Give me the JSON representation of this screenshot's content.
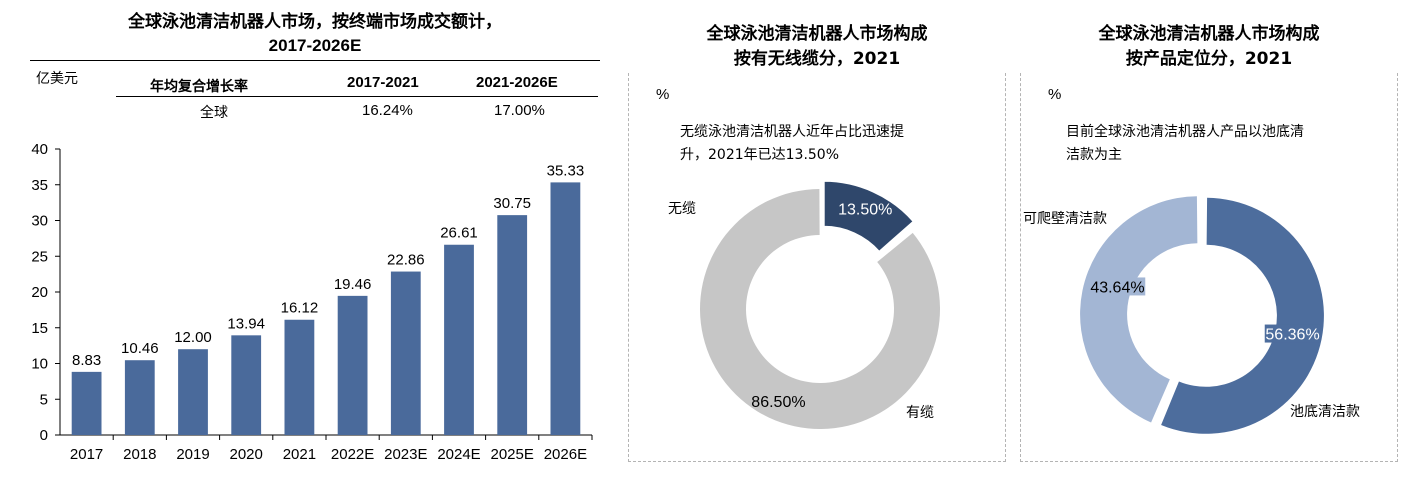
{
  "left_chart": {
    "title_line1": "全球泳池清洁机器人市场，按终端市场成交额计，",
    "title_line2": "2017-2026E",
    "unit": "亿美元",
    "cagr_table": {
      "header_label": "年均复合增长率",
      "col1": "2017-2021",
      "col2": "2021-2026E",
      "row_label": "全球",
      "row_val1": "16.24%",
      "row_val2": "17.00%"
    }
  },
  "middle_chart": {
    "title_line1": "全球泳池清洁机器人市场构成",
    "title_line2": "按有无线缆分，2021",
    "unit": "%",
    "note_line1": "无缆泳池清洁机器人近年占比迅速提",
    "note_line2": "升，2021年已达13.50%"
  },
  "right_chart": {
    "title_line1": "全球泳池清洁机器人市场构成",
    "title_line2": "按产品定位分，2021",
    "unit": "%",
    "note_line1": "目前全球泳池清洁机器人产品以池底清",
    "note_line2": "洁款为主"
  },
  "colors": {
    "bar": "#4a6a9b",
    "cordless": "#2f476b",
    "corded": "#c6c6c6",
    "floor": "#4d6d9d",
    "wall": "#a3b6d4"
  },
  "chart_data": [
    {
      "type": "bar",
      "categories": [
        "2017",
        "2018",
        "2019",
        "2020",
        "2021",
        "2022E",
        "2023E",
        "2024E",
        "2025E",
        "2026E"
      ],
      "values": [
        8.83,
        10.46,
        12.0,
        13.94,
        16.12,
        19.46,
        22.86,
        26.61,
        30.75,
        35.33
      ],
      "value_labels": [
        "8.83",
        "10.46",
        "12.00",
        "13.94",
        "16.12",
        "19.46",
        "22.86",
        "26.61",
        "30.75",
        "35.33"
      ],
      "yticks": [
        "0",
        "5",
        "10",
        "15",
        "20",
        "25",
        "30",
        "35",
        "40"
      ],
      "ylim": [
        0,
        40
      ],
      "grid": false
    },
    {
      "type": "pie",
      "donut": true,
      "slices": [
        {
          "name": "无缆",
          "value": 13.5,
          "label": "13.50%"
        },
        {
          "name": "有缆",
          "value": 86.5,
          "label": "86.50%"
        }
      ]
    },
    {
      "type": "pie",
      "donut": true,
      "slices": [
        {
          "name": "池底清洁款",
          "value": 56.36,
          "label": "56.36%"
        },
        {
          "name": "可爬壁清洁款",
          "value": 43.64,
          "label": "43.64%"
        }
      ]
    }
  ]
}
